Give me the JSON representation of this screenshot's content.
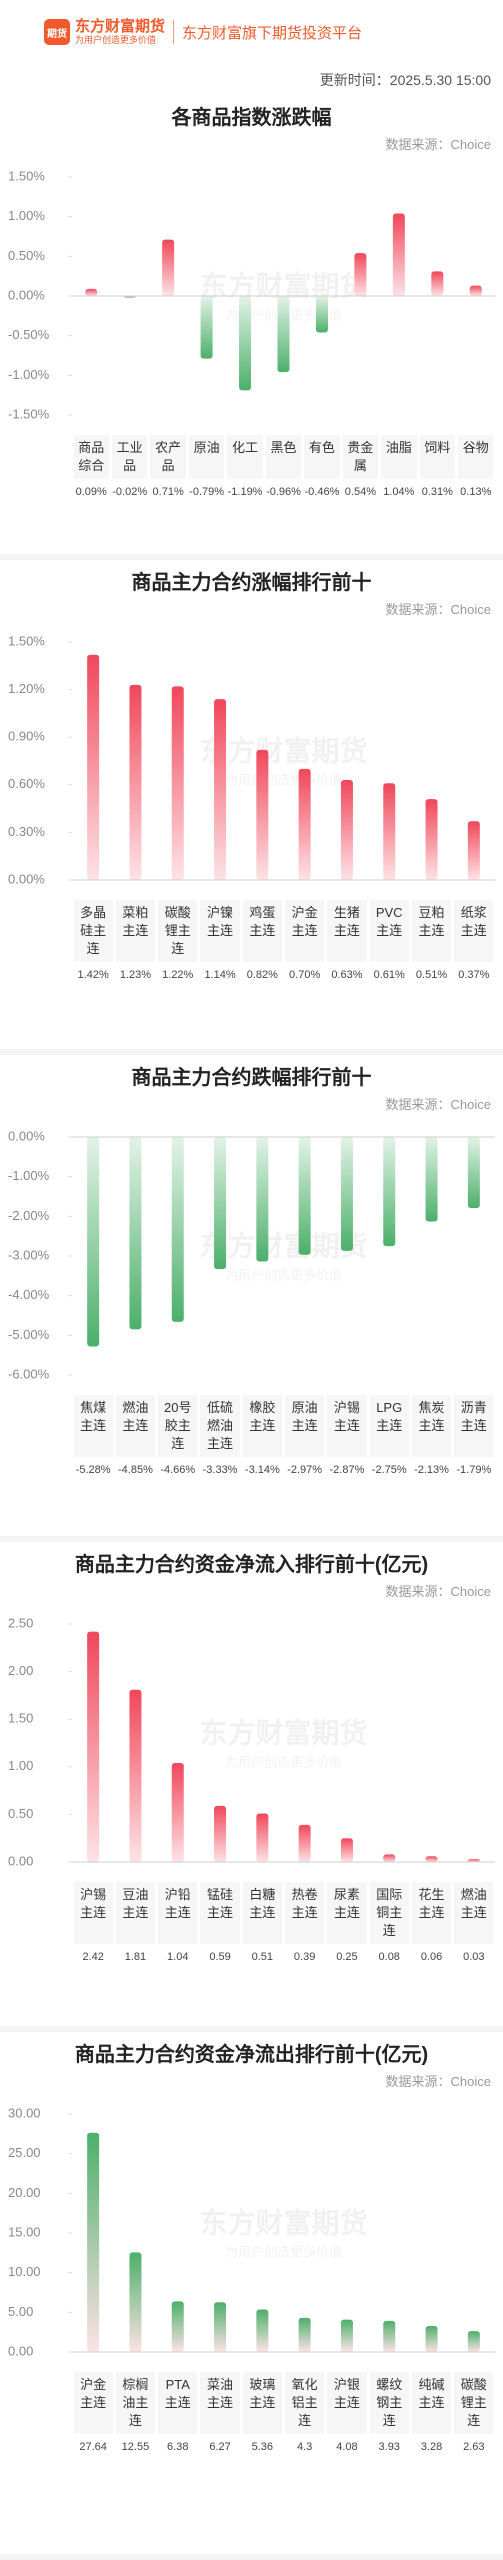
{
  "header": {
    "logo_icon": "期货",
    "brand": "东方财富期货",
    "slogan": "为用户创造更多价值",
    "platform": "东方财富旗下期货投资平台",
    "update_time": "更新时间：2025.5.30 15:00"
  },
  "watermark": {
    "name": "东方财富期货",
    "slogan": "为用户创造更多价值"
  },
  "chart_data": [
    {
      "type": "bar",
      "title": "各商品指数涨跌幅",
      "source": "数据来源：Choice",
      "categories": [
        "商品综合",
        "工业品",
        "农产品",
        "原油",
        "化工",
        "黑色",
        "有色",
        "贵金属",
        "油脂",
        "饲料",
        "谷物"
      ],
      "values": [
        0.09,
        -0.02,
        0.71,
        -0.79,
        -1.19,
        -0.96,
        -0.46,
        0.54,
        1.04,
        0.31,
        0.13
      ],
      "value_labels": [
        "0.09%",
        "-0.02%",
        "0.71%",
        "-0.79%",
        "-1.19%",
        "-0.96%",
        "-0.46%",
        "0.54%",
        "1.04%",
        "0.31%",
        "0.13%"
      ],
      "ylim": [
        -1.5,
        1.5
      ],
      "yticks": [
        {
          "value": 1.5,
          "label": "1.50%"
        },
        {
          "value": 1.0,
          "label": "1.00%"
        },
        {
          "value": 0.5,
          "label": "0.50%"
        },
        {
          "value": 0,
          "label": "0.00%"
        },
        {
          "value": -0.5,
          "label": "-0.50%"
        },
        {
          "value": -1.0,
          "label": "-1.00%"
        },
        {
          "value": -1.5,
          "label": "-1.50%"
        }
      ],
      "positive_color": "#f0475a",
      "negative_color": "#4caf6a",
      "grid": false
    },
    {
      "type": "bar",
      "title": "商品主力合约涨幅排行前十",
      "source": "数据来源：Choice",
      "categories": [
        "多晶硅主连",
        "菜粕主连",
        "碳酸锂主连",
        "沪镍主连",
        "鸡蛋主连",
        "沪金主连",
        "生猪主连",
        "PVC主连",
        "豆粕主连",
        "纸浆主连"
      ],
      "values": [
        1.42,
        1.23,
        1.22,
        1.14,
        0.82,
        0.7,
        0.63,
        0.61,
        0.51,
        0.37
      ],
      "value_labels": [
        "1.42%",
        "1.23%",
        "1.22%",
        "1.14%",
        "0.82%",
        "0.70%",
        "0.63%",
        "0.61%",
        "0.51%",
        "0.37%"
      ],
      "ylim": [
        0,
        1.5
      ],
      "yticks": [
        {
          "value": 1.5,
          "label": "1.50%"
        },
        {
          "value": 1.2,
          "label": "1.20%"
        },
        {
          "value": 0.9,
          "label": "0.90%"
        },
        {
          "value": 0.6,
          "label": "0.60%"
        },
        {
          "value": 0.3,
          "label": "0.30%"
        },
        {
          "value": 0,
          "label": "0.00%"
        }
      ],
      "positive_color": "#f0475a",
      "negative_color": "#4caf6a",
      "grid": false
    },
    {
      "type": "bar",
      "title": "商品主力合约跌幅排行前十",
      "source": "数据来源：Choice",
      "categories": [
        "焦煤主连",
        "燃油主连",
        "20号胶主连",
        "低硫燃油主连",
        "橡胶主连",
        "原油主连",
        "沪锡主连",
        "LPG主连",
        "焦炭主连",
        "沥青主连"
      ],
      "values": [
        -5.28,
        -4.85,
        -4.66,
        -3.33,
        -3.14,
        -2.97,
        -2.87,
        -2.75,
        -2.13,
        -1.79
      ],
      "value_labels": [
        "-5.28%",
        "-4.85%",
        "-4.66%",
        "-3.33%",
        "-3.14%",
        "-2.97%",
        "-2.87%",
        "-2.75%",
        "-2.13%",
        "-1.79%"
      ],
      "ylim": [
        -6,
        0
      ],
      "yticks": [
        {
          "value": 0,
          "label": "0.00%"
        },
        {
          "value": -1,
          "label": "-1.00%"
        },
        {
          "value": -2,
          "label": "-2.00%"
        },
        {
          "value": -3,
          "label": "-3.00%"
        },
        {
          "value": -4,
          "label": "-4.00%"
        },
        {
          "value": -5,
          "label": "-5.00%"
        },
        {
          "value": -6,
          "label": "-6.00%"
        }
      ],
      "positive_color": "#f0475a",
      "negative_color": "#4caf6a",
      "grid": false
    },
    {
      "type": "bar",
      "title": "商品主力合约资金净流入排行前十(亿元)",
      "source": "数据来源：Choice",
      "categories": [
        "沪锡主连",
        "豆油主连",
        "沪铅主连",
        "锰硅主连",
        "白糖主连",
        "热卷主连",
        "尿素主连",
        "国际铜主连",
        "花生主连",
        "燃油主连"
      ],
      "values": [
        2.42,
        1.81,
        1.04,
        0.59,
        0.51,
        0.39,
        0.25,
        0.08,
        0.06,
        0.03
      ],
      "ylim": [
        0,
        2.5
      ],
      "yticks": [
        {
          "value": 2.5,
          "label": "2.50"
        },
        {
          "value": 2,
          "label": "2.00"
        },
        {
          "value": 1.5,
          "label": "1.50"
        },
        {
          "value": 1,
          "label": "1.00"
        },
        {
          "value": 0.5,
          "label": "0.50"
        },
        {
          "value": 0,
          "label": "0.00"
        }
      ],
      "positive_color": "#f0475a",
      "negative_color": "#4caf6a",
      "grid": false
    },
    {
      "type": "bar",
      "title": "商品主力合约资金净流出排行前十(亿元)",
      "source": "数据来源：Choice",
      "categories": [
        "沪金主连",
        "棕榈油主连",
        "PTA主连",
        "菜油主连",
        "玻璃主连",
        "氧化铝主连",
        "沪银主连",
        "螺纹钢主连",
        "纯碱主连",
        "碳酸锂主连"
      ],
      "values": [
        27.64,
        12.55,
        6.38,
        6.27,
        5.36,
        4.3,
        4.08,
        3.93,
        3.28,
        2.63
      ],
      "ylim": [
        0,
        30
      ],
      "yticks": [
        {
          "value": 30,
          "label": "30.00"
        },
        {
          "value": 25,
          "label": "25.00"
        },
        {
          "value": 20,
          "label": "20.00"
        },
        {
          "value": 15,
          "label": "15.00"
        },
        {
          "value": 10,
          "label": "10.00"
        },
        {
          "value": 5,
          "label": "5.00"
        },
        {
          "value": 0,
          "label": "0.00"
        }
      ],
      "positive_color": "#4caf6a",
      "negative_color": "#4caf6a",
      "grid": false
    }
  ]
}
